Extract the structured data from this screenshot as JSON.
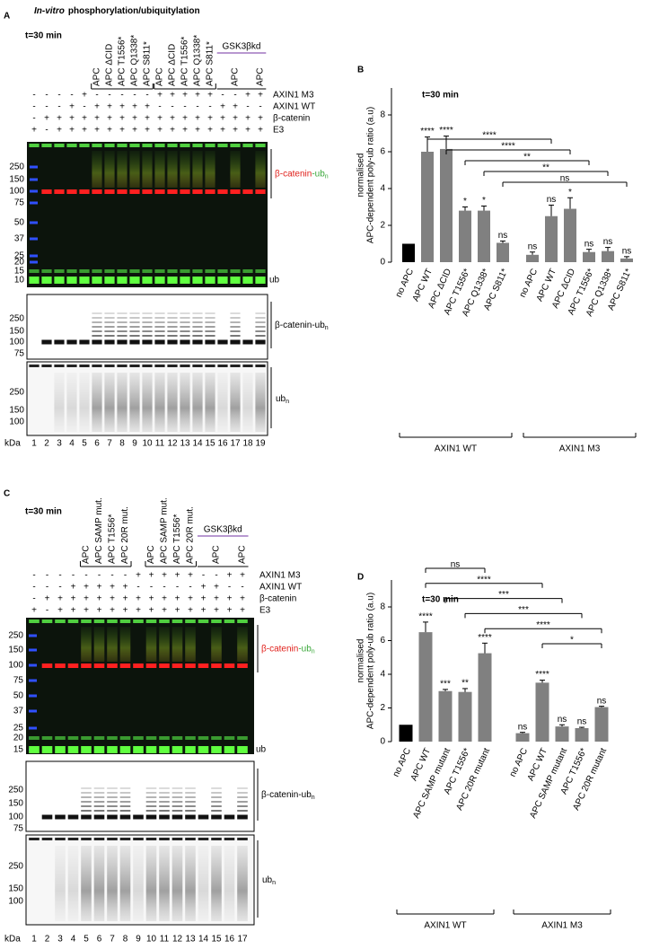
{
  "gels": [
    {
      "letter": "A",
      "title_italic": "In-vitro",
      "title": "phosphorylation/ubiquitylation",
      "time": "t=30 min",
      "lane_labels": [
        null,
        null,
        null,
        null,
        null,
        "APC",
        "APC ΔCID",
        "APC T1556*",
        "APC Q1338*",
        "APC S811*",
        "APC",
        "APC ΔCID",
        "APC T1556*",
        "APC Q1338*",
        "APC S811*",
        null,
        "APC",
        null,
        "APC"
      ],
      "gsk_label": "GSK3βkd",
      "rows": [
        {
          "name": "AXIN1 M3",
          "signs": [
            "-",
            "-",
            "-",
            "-",
            "+",
            "-",
            "-",
            "-",
            "-",
            "-",
            "+",
            "+",
            "+",
            "+",
            "+",
            "-",
            "-",
            "+",
            "+"
          ]
        },
        {
          "name": "AXIN1 WT",
          "signs": [
            "-",
            "-",
            "-",
            "+",
            "-",
            "+",
            "+",
            "+",
            "+",
            "+",
            "-",
            "-",
            "-",
            "-",
            "-",
            "+",
            "+",
            "-",
            "-"
          ]
        },
        {
          "name": "β-catenin",
          "signs": [
            "-",
            "+",
            "+",
            "+",
            "+",
            "+",
            "+",
            "+",
            "+",
            "+",
            "+",
            "+",
            "+",
            "+",
            "+",
            "+",
            "+",
            "+",
            "+"
          ]
        },
        {
          "name": "E3",
          "signs": [
            "+",
            "-",
            "+",
            "+",
            "+",
            "+",
            "+",
            "+",
            "+",
            "+",
            "+",
            "+",
            "+",
            "+",
            "+",
            "+",
            "+",
            "+",
            "+"
          ]
        }
      ],
      "top": {
        "markers": [
          250,
          150,
          100,
          75,
          50,
          37,
          25,
          20,
          15,
          10
        ],
        "label_main": "β-catenin",
        "label_ub": "-ub",
        "label_sub": "n",
        "ub": "ub"
      },
      "middle": {
        "markers": [
          250,
          150,
          100,
          75
        ],
        "label_main": "β-catenin-ub",
        "label_sub": "n"
      },
      "bottom": {
        "markers": [
          250,
          150,
          100
        ],
        "label_main": "ub",
        "label_sub": "n"
      },
      "lanes": [
        1,
        2,
        3,
        4,
        5,
        6,
        7,
        8,
        9,
        10,
        11,
        12,
        13,
        14,
        15,
        16,
        17,
        18,
        19
      ],
      "unit": "kDa"
    },
    {
      "letter": "C",
      "time": "t=30 min",
      "lane_labels": [
        null,
        null,
        null,
        null,
        "APC",
        "APC SAMP mut.",
        "APC T1556*",
        "APC 20R mut.",
        null,
        "APC",
        "APC SAMP mut.",
        "APC T1556*",
        "APC 20R mut.",
        null,
        "APC",
        null,
        "APC"
      ],
      "gsk_label": "GSK3βkd",
      "rows": [
        {
          "name": "AXIN1 M3",
          "signs": [
            "-",
            "-",
            "-",
            "-",
            "-",
            "-",
            "-",
            "-",
            "+",
            "+",
            "+",
            "+",
            "+",
            "-",
            "-",
            "+",
            "+"
          ]
        },
        {
          "name": "AXIN1 WT",
          "signs": [
            "-",
            "-",
            "-",
            "+",
            "+",
            "+",
            "+",
            "+",
            "-",
            "-",
            "-",
            "-",
            "-",
            "+",
            "+",
            "-",
            "-"
          ]
        },
        {
          "name": "β-catenin",
          "signs": [
            "-",
            "+",
            "+",
            "+",
            "+",
            "+",
            "+",
            "+",
            "+",
            "+",
            "+",
            "+",
            "+",
            "+",
            "+",
            "+",
            "+"
          ]
        },
        {
          "name": "E3",
          "signs": [
            "+",
            "-",
            "+",
            "+",
            "+",
            "+",
            "+",
            "+",
            "+",
            "+",
            "+",
            "+",
            "+",
            "+",
            "+",
            "+",
            "+"
          ]
        }
      ],
      "top": {
        "markers": [
          250,
          150,
          100,
          75,
          50,
          37,
          25,
          20,
          15
        ],
        "label_main": "β-catenin",
        "label_ub": "-ub",
        "label_sub": "n",
        "ub": "ub"
      },
      "middle": {
        "markers": [
          250,
          150,
          100,
          75
        ],
        "label_main": "β-catenin-ub",
        "label_sub": "n"
      },
      "bottom": {
        "markers": [
          250,
          150,
          100
        ],
        "label_main": "ub",
        "label_sub": "n"
      },
      "lanes": [
        1,
        2,
        3,
        4,
        5,
        6,
        7,
        8,
        9,
        10,
        11,
        12,
        13,
        14,
        15,
        16,
        17
      ],
      "unit": "kDa"
    }
  ],
  "chart_data": [
    {
      "type": "bar",
      "letter": "B",
      "title": "t=30 min",
      "ylabel": [
        "normalised",
        "APC-dependent poly-ub ratio (a.u)"
      ],
      "categories": [
        "no APC",
        "APC WT",
        "APC ΔCID",
        "APC T1556*",
        "APC Q1338*",
        "APC S811*",
        "no APC",
        "APC WT",
        "APC ΔCID",
        "APC T1556*",
        "APC Q1338*",
        "APC S811*"
      ],
      "values": [
        1,
        6.0,
        6.15,
        2.8,
        2.8,
        1.05,
        0.4,
        2.5,
        2.9,
        0.55,
        0.6,
        0.2
      ],
      "errors": [
        0,
        0.8,
        0.7,
        0.2,
        0.25,
        0.1,
        0.15,
        0.6,
        0.6,
        0.15,
        0.2,
        0.1
      ],
      "significance": [
        null,
        "****",
        "****",
        "*",
        "*",
        "ns",
        "ns",
        "ns",
        "*",
        "ns",
        "ns",
        "ns"
      ],
      "colors": [
        "#000000",
        "#808080",
        "#808080",
        "#808080",
        "#808080",
        "#808080",
        "#808080",
        "#808080",
        "#808080",
        "#808080",
        "#808080",
        "#808080"
      ],
      "groups": [
        {
          "name": "AXIN1 WT",
          "count": 6
        },
        {
          "name": "AXIN1 M3",
          "count": 6
        }
      ],
      "comparisons": [
        {
          "between": [
            1,
            7
          ],
          "label": "****"
        },
        {
          "between": [
            2,
            8
          ],
          "label": "****"
        },
        {
          "between": [
            3,
            9
          ],
          "label": "**"
        },
        {
          "between": [
            4,
            10
          ],
          "label": "**"
        },
        {
          "between": [
            5,
            11
          ],
          "label": "ns"
        }
      ],
      "ylim": [
        0,
        8
      ],
      "yticks": [
        0,
        2,
        4,
        6,
        8
      ]
    },
    {
      "type": "bar",
      "letter": "D",
      "title": "t=30 min",
      "ylabel": [
        "normalised",
        "APC-dependent poly-ub ratio (a.u)"
      ],
      "categories": [
        "no APC",
        "APC WT",
        "APC SAMP mutant",
        "APC T1556*",
        "APC 20R mutant",
        "no APC",
        "APC WT",
        "APC SAMP mutant",
        "APC T1556*",
        "APC 20R mutant"
      ],
      "values": [
        1,
        6.5,
        3.0,
        2.95,
        5.25,
        0.5,
        3.5,
        0.9,
        0.8,
        2.05
      ],
      "errors": [
        0,
        0.6,
        0.1,
        0.2,
        0.6,
        0.05,
        0.15,
        0.1,
        0.05,
        0.05
      ],
      "significance": [
        null,
        "****",
        "***",
        "**",
        "****",
        "ns",
        "****",
        "ns",
        "ns",
        "ns"
      ],
      "colors": [
        "#000000",
        "#808080",
        "#808080",
        "#808080",
        "#808080",
        "#808080",
        "#808080",
        "#808080",
        "#808080",
        "#808080"
      ],
      "groups": [
        {
          "name": "AXIN1 WT",
          "count": 5
        },
        {
          "name": "AXIN1 M3",
          "count": 5
        }
      ],
      "comparisons": [
        {
          "between": [
            1,
            4
          ],
          "label": "ns"
        },
        {
          "between": [
            1,
            6
          ],
          "label": "****"
        },
        {
          "between": [
            2,
            7
          ],
          "label": "***"
        },
        {
          "between": [
            3,
            8
          ],
          "label": "***"
        },
        {
          "between": [
            4,
            9
          ],
          "label": "****"
        },
        {
          "between": [
            6,
            9
          ],
          "label": "*"
        }
      ],
      "ylim": [
        0,
        8
      ],
      "yticks": [
        0,
        2,
        4,
        6,
        8
      ]
    }
  ]
}
